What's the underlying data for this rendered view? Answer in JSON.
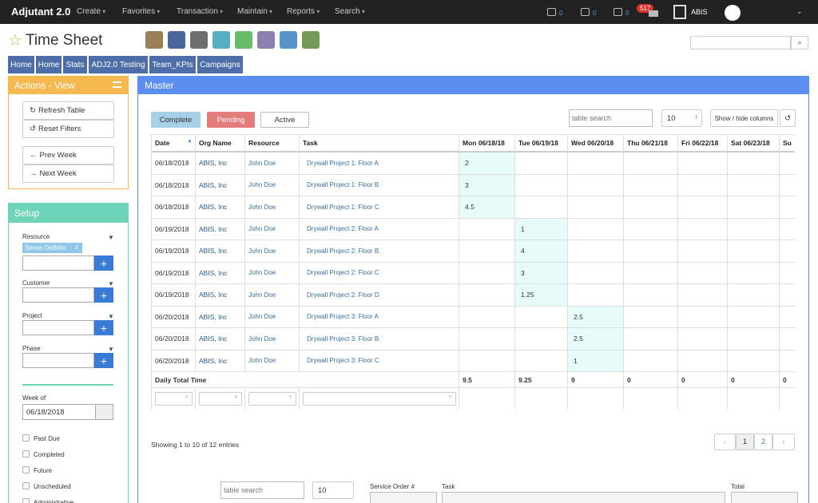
{
  "navbar": {
    "brand": "Adjutant 2.0",
    "menus": [
      "Create",
      "Favorites",
      "Transaction",
      "Maintain",
      "Reports",
      "Search"
    ],
    "counts": [
      "0",
      "0",
      "0"
    ],
    "badge": "517",
    "user": "ABIS"
  },
  "page_title": "Time Sheet",
  "tabs": [
    "Home",
    "Home",
    "Stats",
    "ADJ2.0 Testing",
    "Team_KPIs",
    "Campaigns"
  ],
  "actions": {
    "title": "Actions - View",
    "buttons": [
      "Refresh Table",
      "Reset Filters",
      "Prev Week",
      "Next Week"
    ]
  },
  "setup": {
    "title": "Setup",
    "filters": [
      {
        "label": "Resource",
        "tag": "Simon  DeBrito",
        "tag_close": "x"
      },
      {
        "label": "Customer"
      },
      {
        "label": "Project"
      },
      {
        "label": "Phase"
      }
    ],
    "week_label": "Week of",
    "week_value": "06/18/2018",
    "checkboxes": [
      "Past Due",
      "Completed",
      "Future",
      "Unscheduled",
      "Administrative"
    ]
  },
  "master": {
    "title": "Master",
    "status_buttons": [
      "Complete",
      "Pending",
      "Active"
    ],
    "search_placeholder": "table search",
    "page_size": "10",
    "columns_button": "Show / hide columns",
    "table": {
      "columns": [
        "Date",
        "Org Name",
        "Resource",
        "Task",
        "Mon 06/18/18",
        "Tue 06/19/18",
        "Wed 06/20/18",
        "Thu 06/21/18",
        "Fri 06/22/18",
        "Sat 06/23/18",
        "Su"
      ],
      "rows": [
        {
          "date": "06/18/2018",
          "org": "ABIS, Inc",
          "resource": "John Doe",
          "task": "Drywall Project 1: Floor A",
          "hours": [
            2,
            null,
            null,
            null,
            null,
            null,
            null
          ]
        },
        {
          "date": "06/18/2018",
          "org": "ABIS, Inc",
          "resource": "John Doe",
          "task": "Drywall Project 1: Floor B",
          "hours": [
            3,
            null,
            null,
            null,
            null,
            null,
            null
          ]
        },
        {
          "date": "06/18/2018",
          "org": "ABIS, Inc",
          "resource": "John Doe",
          "task": "Drywall Project 1: Floor C",
          "hours": [
            4.5,
            null,
            null,
            null,
            null,
            null,
            null
          ]
        },
        {
          "date": "06/19/2018",
          "org": "ABIS, Inc",
          "resource": "John Doe",
          "task": "Drywall Project 2: Floor A",
          "hours": [
            null,
            1,
            null,
            null,
            null,
            null,
            null
          ]
        },
        {
          "date": "06/19/2018",
          "org": "ABIS, Inc",
          "resource": "John Doe",
          "task": "Drywall Project 2: Floor B",
          "hours": [
            null,
            4,
            null,
            null,
            null,
            null,
            null
          ]
        },
        {
          "date": "06/19/2018",
          "org": "ABIS, Inc",
          "resource": "John Doe",
          "task": "Drywall Project 2: Floor C",
          "hours": [
            null,
            3,
            null,
            null,
            null,
            null,
            null
          ]
        },
        {
          "date": "06/19/2018",
          "org": "ABIS, Inc",
          "resource": "John Doe",
          "task": "Drywall Project 2: Floor D",
          "hours": [
            null,
            1.25,
            null,
            null,
            null,
            null,
            null
          ]
        },
        {
          "date": "06/20/2018",
          "org": "ABIS, Inc",
          "resource": "John Doe",
          "task": "Drywall Project 3: Floor A",
          "hours": [
            null,
            null,
            2.5,
            null,
            null,
            null,
            null
          ]
        },
        {
          "date": "06/20/2018",
          "org": "ABIS, Inc",
          "resource": "John Doe",
          "task": "Drywall Project 3: Floor B",
          "hours": [
            null,
            null,
            2.5,
            null,
            null,
            null,
            null
          ]
        },
        {
          "date": "06/20/2018",
          "org": "ABIS, Inc",
          "resource": "John Doe",
          "task": "Drywall Project 3: Floor C",
          "hours": [
            null,
            null,
            1,
            null,
            null,
            null,
            null
          ]
        }
      ],
      "total_label": "Daily Total Time",
      "totals": [
        9.5,
        9.25,
        9,
        0,
        0,
        0,
        0
      ]
    },
    "info": "Showing 1 to 10 of 12 entries",
    "pages": [
      "1",
      "2"
    ]
  },
  "detail": {
    "search_placeholder": "table search",
    "page_size": "10",
    "columns": [
      "Service Order #",
      "Task",
      "Total"
    ]
  }
}
